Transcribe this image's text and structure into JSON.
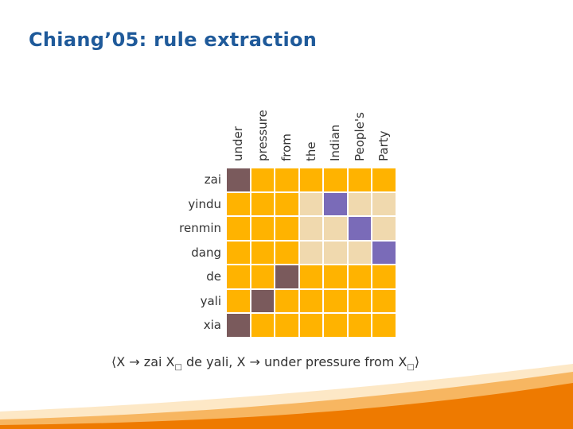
{
  "title": "Chiang’05: rule extraction",
  "columns": [
    "under",
    "pressure",
    "from",
    "the",
    "Indian",
    "People's",
    "Party"
  ],
  "rows": [
    "zai",
    "yindu",
    "renmin",
    "dang",
    "de",
    "yali",
    "xia"
  ],
  "matrix": [
    [
      "a",
      "o",
      "o",
      "o",
      "o",
      "o",
      "o"
    ],
    [
      "o",
      "o",
      "o",
      "b",
      "p",
      "b",
      "b"
    ],
    [
      "o",
      "o",
      "o",
      "b",
      "b",
      "p",
      "b"
    ],
    [
      "o",
      "o",
      "o",
      "b",
      "b",
      "b",
      "p"
    ],
    [
      "o",
      "o",
      "a",
      "o",
      "o",
      "o",
      "o"
    ],
    [
      "o",
      "a",
      "o",
      "o",
      "o",
      "o",
      "o"
    ],
    [
      "a",
      "o",
      "o",
      "o",
      "o",
      "o",
      "o"
    ]
  ],
  "colors": {
    "o": "#ffb300",
    "a": "#7a5a5c",
    "b": "#f0d9ae",
    "p": "#7a6bb8"
  },
  "rule": {
    "open": "⟨",
    "part1": "X → zai X",
    "sub1": "□",
    "part2": " de yali, X → under pressure from X",
    "sub2": "□",
    "close": "⟩"
  }
}
